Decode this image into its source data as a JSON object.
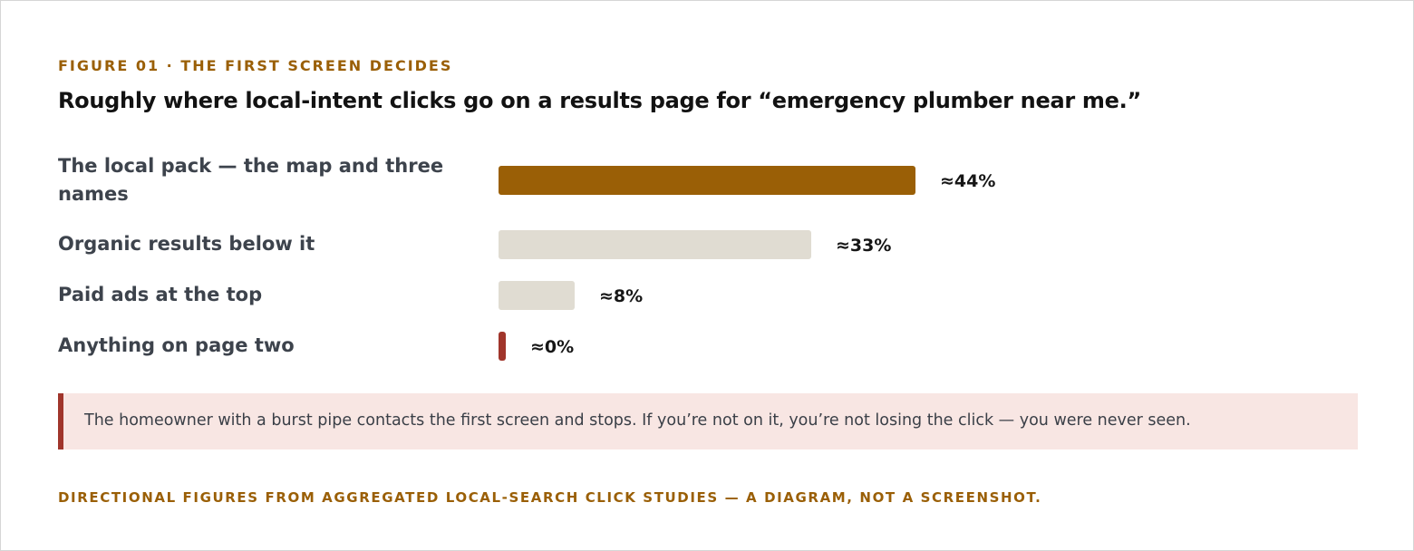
{
  "figure": {
    "eyebrow": "FIGURE 01 · THE FIRST SCREEN DECIDES",
    "title": "Roughly where local-intent clicks go on a results page for “emergency plumber near me.”",
    "callout": "The homeowner with a burst pipe contacts the first screen and stops. If you’re not on it, you’re not losing the click — you were never seen.",
    "footnote": "DIRECTIONAL FIGURES FROM AGGREGATED LOCAL-SEARCH CLICK STUDIES — A DIAGRAM, NOT A SCREENSHOT."
  },
  "colors": {
    "highlight": "#9a5f06",
    "neutral": "#e0dcd2",
    "warning": "#a0352b",
    "callout_bg": "#f8e6e3"
  },
  "chart_data": {
    "type": "bar",
    "orientation": "horizontal",
    "title": "Roughly where local-intent clicks go on a results page for “emergency plumber near me.”",
    "categories": [
      "The local pack — the map and three names",
      "Organic results below it",
      "Paid ads at the top",
      "Anything on page two"
    ],
    "values": [
      44,
      33,
      8,
      0
    ],
    "value_labels": [
      "≈44%",
      "≈33%",
      "≈8%",
      "≈0%"
    ],
    "bar_colors": [
      "#9a5f06",
      "#e0dcd2",
      "#e0dcd2",
      "#a0352b"
    ],
    "unit": "%",
    "xlim": [
      0,
      44
    ],
    "grid": false,
    "legend": "none"
  }
}
